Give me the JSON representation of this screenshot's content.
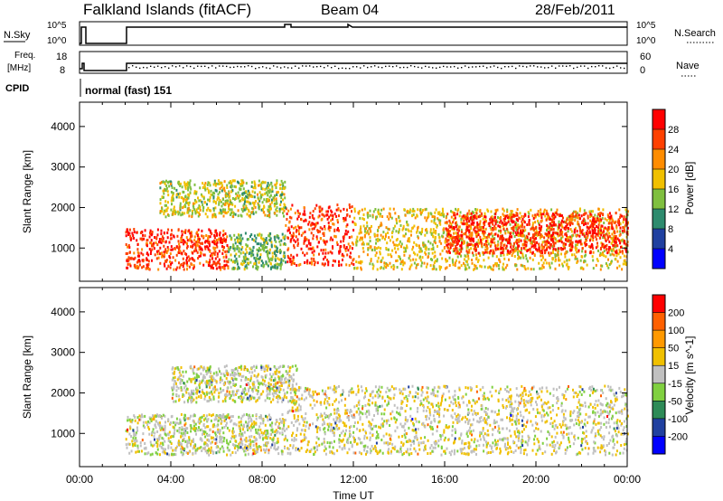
{
  "header": {
    "station": "Falkland Islands (fitACF)",
    "beam": "Beam 04",
    "date": "28/Feb/2011"
  },
  "strip_labels": {
    "nsky": "N.Sky",
    "nsearch": "N.Search",
    "freq": "Freq.",
    "freq_unit": "[MHz]",
    "nave": "Nave",
    "cpid": "CPID",
    "cpid_value": "normal (fast) 151",
    "nsky_ticks": [
      "10^5",
      "10^0"
    ],
    "nsearch_ticks": [
      "10^5",
      "10^0"
    ],
    "freq_ticks": [
      "18",
      "8"
    ],
    "nave_ticks": [
      "60",
      "0"
    ]
  },
  "colors": {
    "power_scale": [
      "#0000ff",
      "#2040a0",
      "#2e8b6e",
      "#7fbf3f",
      "#f0c000",
      "#ff8c00",
      "#ff4000",
      "#ff0000"
    ],
    "velocity_scale": [
      "#ff0000",
      "#ff6000",
      "#ff9900",
      "#f0c000",
      "#c0c0c0",
      "#80d040",
      "#2e8b57",
      "#2040a0",
      "#0000ff"
    ]
  },
  "chart_data": [
    {
      "type": "heatmap",
      "quantity": "Power",
      "ylabel": "Slant Range [km]",
      "ylim": [
        180,
        4600
      ],
      "yticks": [
        "1000",
        "2000",
        "3000",
        "4000"
      ],
      "xlim": [
        0,
        24
      ],
      "colorbar": {
        "label": "Power [dB]",
        "ticks": [
          "4",
          "8",
          "12",
          "16",
          "20",
          "24",
          "28"
        ]
      },
      "echo_regions": [
        {
          "t": [
            2.0,
            6.5
          ],
          "range": [
            500,
            1500
          ],
          "level": 27
        },
        {
          "t": [
            6.5,
            9.0
          ],
          "range": [
            500,
            1400
          ],
          "level": 13
        },
        {
          "t": [
            9.0,
            12.0
          ],
          "range": [
            600,
            2100
          ],
          "level": 27
        },
        {
          "t": [
            12.0,
            24.0
          ],
          "range": [
            500,
            2000
          ],
          "level": 18
        },
        {
          "t": [
            3.5,
            9.0
          ],
          "range": [
            1800,
            2700
          ],
          "level": 16
        },
        {
          "t": [
            16.0,
            24.0
          ],
          "range": [
            900,
            1900
          ],
          "level": 28
        }
      ]
    },
    {
      "type": "heatmap",
      "quantity": "Velocity",
      "ylabel": "Slant Range [km]",
      "ylim": [
        180,
        4600
      ],
      "yticks": [
        "1000",
        "2000",
        "3000",
        "4000"
      ],
      "xlim": [
        0,
        24
      ],
      "xlabel": "Time UT",
      "xticks": [
        "00:00",
        "04:00",
        "08:00",
        "12:00",
        "16:00",
        "20:00",
        "00:00"
      ],
      "colorbar": {
        "label": "Velocity [m s^-1]",
        "ticks": [
          "200",
          "100",
          "50",
          "15",
          "-15",
          "-50",
          "-100",
          "-200"
        ]
      },
      "echo_regions": [
        {
          "t": [
            2.0,
            9.0
          ],
          "range": [
            500,
            1500
          ],
          "level": 0
        },
        {
          "t": [
            4.0,
            9.5
          ],
          "range": [
            1800,
            2700
          ],
          "level": 0
        },
        {
          "t": [
            9.0,
            24.0
          ],
          "range": [
            500,
            2200
          ],
          "level": -5
        }
      ]
    }
  ]
}
